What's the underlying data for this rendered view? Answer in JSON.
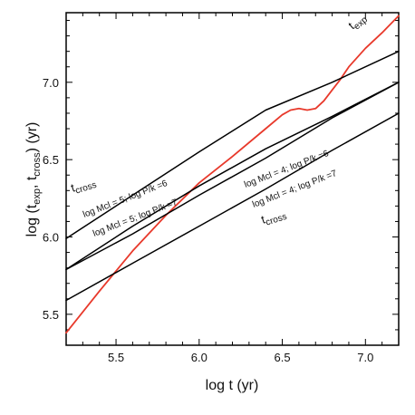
{
  "chart_data": {
    "type": "line",
    "xlabel": "log t  (yr)",
    "ylabel": "log (t_exp, t_cross) (yr)",
    "xlim": [
      5.2,
      7.2
    ],
    "ylim": [
      5.3,
      7.45
    ],
    "x_ticks": [
      "5.5",
      "6.0",
      "6.5",
      "7.0"
    ],
    "y_ticks": [
      "5.5",
      "6.0",
      "6.5",
      "7.0"
    ],
    "x_tick_values": [
      5.5,
      6.0,
      6.5,
      7.0
    ],
    "y_tick_values": [
      5.5,
      6.0,
      6.5,
      7.0
    ],
    "grid": false,
    "series": [
      {
        "key": "texp",
        "color": "#e8392b",
        "x": [
          5.2,
          5.4,
          5.6,
          5.8,
          6.0,
          6.2,
          6.4,
          6.5,
          6.55,
          6.6,
          6.65,
          6.7,
          6.75,
          6.8,
          6.85,
          6.9,
          7.0,
          7.1,
          7.2
        ],
        "y": [
          5.38,
          5.65,
          5.91,
          6.14,
          6.35,
          6.52,
          6.7,
          6.79,
          6.82,
          6.83,
          6.82,
          6.83,
          6.88,
          6.95,
          7.02,
          7.1,
          7.22,
          7.32,
          7.43
        ]
      },
      {
        "key": "cross_M5_P6",
        "color": "#000000",
        "x": [
          5.2,
          5.6,
          6.0,
          6.4,
          6.8,
          7.2
        ],
        "y": [
          5.99,
          6.27,
          6.55,
          6.82,
          7.0,
          7.2
        ]
      },
      {
        "key": "cross_M5_P7",
        "color": "#000000",
        "x": [
          5.2,
          5.6,
          6.0,
          6.4,
          6.8,
          7.2
        ],
        "y": [
          5.79,
          6.07,
          6.33,
          6.57,
          6.78,
          7.0
        ]
      },
      {
        "key": "cross_M4_P6",
        "color": "#000000",
        "x": [
          5.2,
          5.6,
          6.0,
          6.4,
          6.8,
          7.2
        ],
        "y": [
          5.79,
          6.02,
          6.27,
          6.51,
          6.77,
          7.0
        ]
      },
      {
        "key": "cross_M4_P7",
        "color": "#000000",
        "x": [
          5.2,
          5.6,
          6.0,
          6.4,
          6.8,
          7.2
        ],
        "y": [
          5.59,
          5.83,
          6.07,
          6.31,
          6.56,
          6.8
        ]
      }
    ],
    "annotations": {
      "texp_main": "t",
      "texp_sub": "exp",
      "tcross_main": "t",
      "tcross_sub": "cross",
      "m5p6": "log Mcl = 5; log P/k =6",
      "m5p7": "log Mcl = 5; log P/k =7",
      "m4p6": "log Mcl = 4; log P/k =6",
      "m4p7": "log Mcl = 4; log P/k =7"
    }
  }
}
